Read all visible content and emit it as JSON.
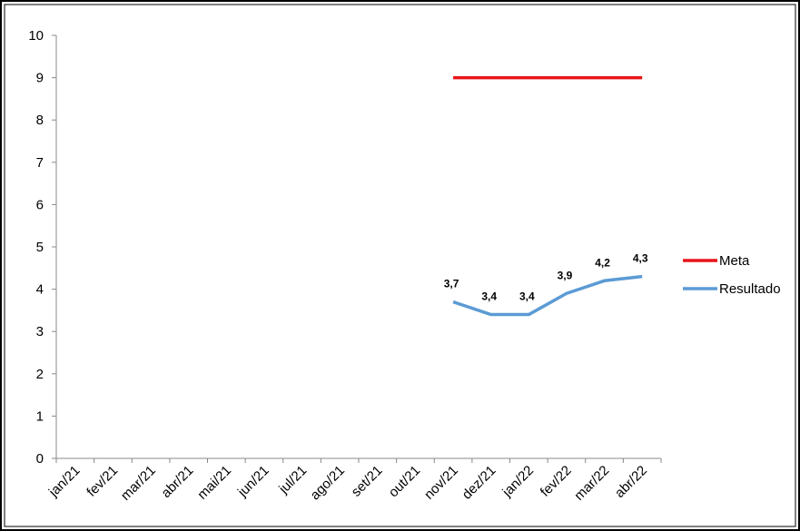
{
  "chart_data": {
    "type": "line",
    "categories": [
      "jan/21",
      "fev/21",
      "mar/21",
      "abr/21",
      "mai/21",
      "jun/21",
      "jul/21",
      "ago/21",
      "set/21",
      "out/21",
      "nov/21",
      "dez/21",
      "jan/22",
      "fev/22",
      "mar/22",
      "abr/22"
    ],
    "series": [
      {
        "name": "Meta",
        "color": "#e8141b",
        "values": [
          null,
          null,
          null,
          null,
          null,
          null,
          null,
          null,
          null,
          null,
          9,
          9,
          9,
          9,
          9,
          9
        ]
      },
      {
        "name": "Resultado",
        "color": "#5b9bd5",
        "values": [
          null,
          null,
          null,
          null,
          null,
          null,
          null,
          null,
          null,
          null,
          3.7,
          3.4,
          3.4,
          3.9,
          4.2,
          4.3
        ],
        "value_labels": [
          null,
          null,
          null,
          null,
          null,
          null,
          null,
          null,
          null,
          null,
          "3,7",
          "3,4",
          "3,4",
          "3,9",
          "4,2",
          "4,3"
        ]
      }
    ],
    "ylim": [
      0,
      10
    ],
    "yticks": [
      0,
      1,
      2,
      3,
      4,
      5,
      6,
      7,
      8,
      9,
      10
    ],
    "grid": false,
    "legend": "right"
  }
}
